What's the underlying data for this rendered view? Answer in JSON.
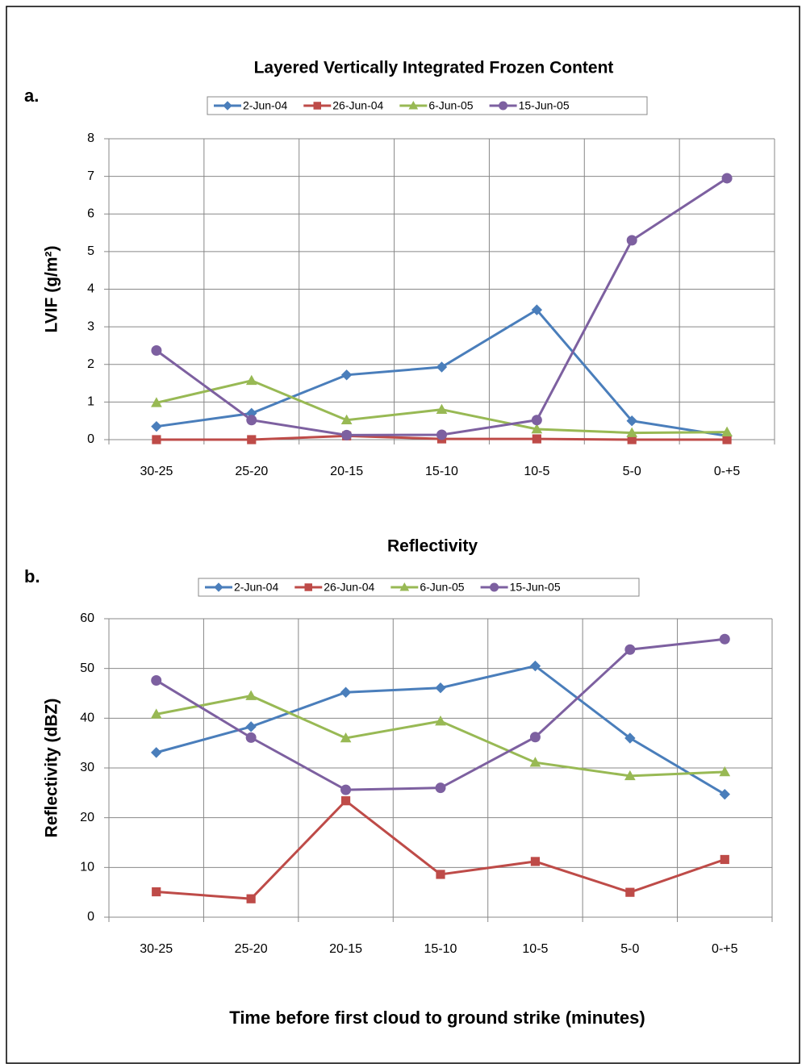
{
  "chart_data": [
    {
      "type": "line",
      "panel_label": "a.",
      "title": "Layered Vertically Integrated Frozen Content",
      "categories": [
        "30-25",
        "25-20",
        "20-15",
        "15-10",
        "10-5",
        "5-0",
        "0-+5"
      ],
      "series": [
        {
          "name": "2-Jun-04",
          "color": "#4a7ebb",
          "marker": "diamond",
          "values": [
            0.35,
            0.7,
            1.72,
            1.93,
            3.45,
            0.5,
            0.1
          ]
        },
        {
          "name": "26-Jun-04",
          "color": "#be4b48",
          "marker": "square",
          "values": [
            0,
            0,
            0.1,
            0.02,
            0.02,
            0,
            0
          ]
        },
        {
          "name": "6-Jun-05",
          "color": "#98b954",
          "marker": "triangle",
          "values": [
            0.98,
            1.57,
            0.52,
            0.8,
            0.28,
            0.18,
            0.2
          ]
        },
        {
          "name": "15-Jun-05",
          "color": "#7d60a0",
          "marker": "circle",
          "values": [
            2.37,
            0.52,
            0.12,
            0.13,
            0.52,
            5.3,
            6.95
          ]
        }
      ],
      "y_label": "LVIF (g/m²)",
      "ylim": [
        0,
        8
      ],
      "yticks": [
        0,
        1,
        2,
        3,
        4,
        5,
        6,
        7,
        8
      ],
      "grid": true,
      "legend": "top"
    },
    {
      "type": "line",
      "panel_label": "b.",
      "title": "Reflectivity",
      "categories": [
        "30-25",
        "25-20",
        "20-15",
        "15-10",
        "10-5",
        "5-0",
        "0-+5"
      ],
      "series": [
        {
          "name": "2-Jun-04",
          "color": "#4a7ebb",
          "marker": "diamond",
          "values": [
            33.1,
            38.3,
            45.2,
            46.1,
            50.5,
            36,
            24.7
          ]
        },
        {
          "name": "26-Jun-04",
          "color": "#be4b48",
          "marker": "square",
          "values": [
            5.1,
            3.7,
            23.4,
            8.6,
            11.2,
            5,
            11.6
          ]
        },
        {
          "name": "6-Jun-05",
          "color": "#98b954",
          "marker": "triangle",
          "values": [
            40.8,
            44.5,
            36,
            39.4,
            31.1,
            28.4,
            29.2
          ]
        },
        {
          "name": "15-Jun-05",
          "color": "#7d60a0",
          "marker": "circle",
          "values": [
            47.6,
            36.1,
            25.6,
            26,
            36.2,
            53.8,
            55.9
          ]
        }
      ],
      "y_label": "Reflectivity (dBZ)",
      "x_label": "Time before first cloud to ground strike (minutes)",
      "ylim": [
        0,
        60
      ],
      "yticks": [
        0,
        10,
        20,
        30,
        40,
        50,
        60
      ],
      "grid": true,
      "legend": "top"
    }
  ]
}
